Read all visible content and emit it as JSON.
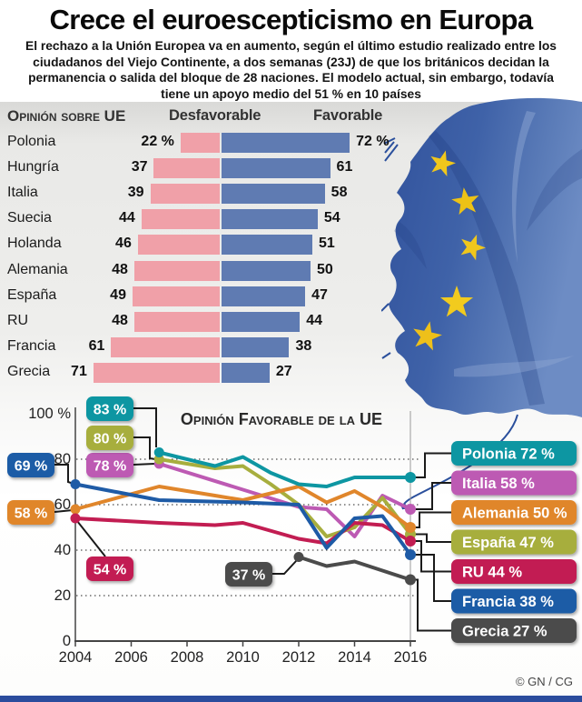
{
  "title": "Crece el euroescepticismo en Europa",
  "subtitle": "El rechazo a la Unión Europea va en aumento, según el último estudio realizado entre los ciudadanos del Viejo Continente, a dos semanas (23J) de que los británicos decidan la permanencia o salida del bloque de 28 naciones. El modelo actual, sin embargo, todavía tiene un apoyo medio del 51 % en 10 países",
  "credit": "© GN / CG",
  "colors": {
    "bar_desfavorable": "#f0a0a8",
    "bar_favorable": "#5f7bb2",
    "polonia": "#0d96a2",
    "italia": "#bd5ab3",
    "alemania": "#e0862b",
    "espana": "#a7ae3e",
    "ru": "#c21d52",
    "francia": "#1e5ba6",
    "grecia": "#4b4b4b",
    "bottom_strip": "#2b4c9d"
  },
  "chart_data": [
    {
      "type": "bar",
      "title": "Opinión sobre UE",
      "orientation": "horizontal_diverging",
      "columns": [
        "Desfavorable",
        "Favorable"
      ],
      "categories": [
        "Polonia",
        "Hungría",
        "Italia",
        "Suecia",
        "Holanda",
        "Alemania",
        "España",
        "RU",
        "Francia",
        "Grecia"
      ],
      "rows": [
        {
          "country": "Polonia",
          "desfavorable": 22,
          "favorable": 72,
          "des_label": "22 %",
          "fav_label": "72 %"
        },
        {
          "country": "Hungría",
          "desfavorable": 37,
          "favorable": 61,
          "des_label": "37",
          "fav_label": "61"
        },
        {
          "country": "Italia",
          "desfavorable": 39,
          "favorable": 58,
          "des_label": "39",
          "fav_label": "58"
        },
        {
          "country": "Suecia",
          "desfavorable": 44,
          "favorable": 54,
          "des_label": "44",
          "fav_label": "54"
        },
        {
          "country": "Holanda",
          "desfavorable": 46,
          "favorable": 51,
          "des_label": "46",
          "fav_label": "51"
        },
        {
          "country": "Alemania",
          "desfavorable": 48,
          "favorable": 50,
          "des_label": "48",
          "fav_label": "50"
        },
        {
          "country": "España",
          "desfavorable": 49,
          "favorable": 47,
          "des_label": "49",
          "fav_label": "47"
        },
        {
          "country": "RU",
          "desfavorable": 48,
          "favorable": 44,
          "des_label": "48",
          "fav_label": "44"
        },
        {
          "country": "Francia",
          "desfavorable": 61,
          "favorable": 38,
          "des_label": "61",
          "fav_label": "38"
        },
        {
          "country": "Grecia",
          "desfavorable": 71,
          "favorable": 27,
          "des_label": "71",
          "fav_label": "27"
        }
      ]
    },
    {
      "type": "line",
      "title": "Opinión Favorable de la UE",
      "xlabel": "",
      "ylabel": "%",
      "xlim": [
        2004,
        2016
      ],
      "ylim": [
        0,
        100
      ],
      "x_ticks": [
        2004,
        2006,
        2008,
        2010,
        2012,
        2014,
        2016
      ],
      "y_ticks": [
        100,
        80,
        60,
        40,
        20,
        0
      ],
      "y_tick_labels": [
        "100 %",
        "80",
        "60",
        "40",
        "20",
        "0"
      ],
      "gridlines": [
        80,
        60,
        40,
        20
      ],
      "grid_style": "dotted",
      "legend_position": "right",
      "legend_order": [
        "Polonia",
        "Italia",
        "Alemania",
        "España",
        "RU",
        "Francia",
        "Grecia"
      ],
      "series": [
        {
          "name": "Italia",
          "color": "#bd5ab3",
          "start_label": "78 %",
          "legend_label": "Italia 58 %",
          "points": [
            [
              2007,
              78
            ],
            [
              2012,
              59
            ],
            [
              2013,
              58
            ],
            [
              2014,
              46
            ],
            [
              2015,
              64
            ],
            [
              2016,
              58
            ]
          ]
        },
        {
          "name": "España",
          "color": "#a7ae3e",
          "start_label": "80 %",
          "legend_label": "España 47 %",
          "points": [
            [
              2007,
              80
            ],
            [
              2009,
              76
            ],
            [
              2010,
              77
            ],
            [
              2011,
              69
            ],
            [
              2012,
              60
            ],
            [
              2013,
              46
            ],
            [
              2014,
              50
            ],
            [
              2015,
              63
            ],
            [
              2016,
              47
            ]
          ]
        },
        {
          "name": "Alemania",
          "color": "#e0862b",
          "start_label": "58 %",
          "legend_label": "Alemania 50 %",
          "points": [
            [
              2004,
              58
            ],
            [
              2007,
              68
            ],
            [
              2009,
              64
            ],
            [
              2010,
              62
            ],
            [
              2012,
              68
            ],
            [
              2013,
              61
            ],
            [
              2014,
              66
            ],
            [
              2015,
              59
            ],
            [
              2016,
              50
            ]
          ]
        },
        {
          "name": "RU",
          "color": "#c21d52",
          "start_label": "54 %",
          "legend_label": "RU 44 %",
          "points": [
            [
              2004,
              54
            ],
            [
              2007,
              52
            ],
            [
              2009,
              51
            ],
            [
              2010,
              52
            ],
            [
              2012,
              45
            ],
            [
              2013,
              43
            ],
            [
              2014,
              52
            ],
            [
              2015,
              51
            ],
            [
              2016,
              44
            ]
          ]
        },
        {
          "name": "Francia",
          "color": "#1e5ba6",
          "start_label": "69 %",
          "legend_label": "Francia 38 %",
          "points": [
            [
              2004,
              69
            ],
            [
              2007,
              62
            ],
            [
              2010,
              61
            ],
            [
              2012,
              60
            ],
            [
              2013,
              41
            ],
            [
              2014,
              54
            ],
            [
              2015,
              55
            ],
            [
              2016,
              38
            ]
          ]
        },
        {
          "name": "Polonia",
          "color": "#0d96a2",
          "start_label": "83 %",
          "legend_label": "Polonia 72 %",
          "points": [
            [
              2007,
              83
            ],
            [
              2009,
              77
            ],
            [
              2010,
              81
            ],
            [
              2011,
              74
            ],
            [
              2012,
              69
            ],
            [
              2013,
              68
            ],
            [
              2014,
              72
            ],
            [
              2015,
              72
            ],
            [
              2016,
              72
            ]
          ]
        },
        {
          "name": "Grecia",
          "color": "#4b4b4b",
          "start_label": "37 %",
          "legend_label": "Grecia 27 %",
          "points": [
            [
              2012,
              37
            ],
            [
              2013,
              33
            ],
            [
              2014,
              35
            ],
            [
              2015,
              31
            ],
            [
              2016,
              27
            ]
          ]
        }
      ]
    }
  ]
}
